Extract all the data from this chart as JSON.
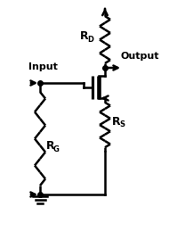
{
  "bg_color": "#ffffff",
  "line_color": "#000000",
  "text_color": "#000000",
  "figsize": [
    1.9,
    2.78
  ],
  "dpi": 100,
  "labels": {
    "RD": "R",
    "RD_sub": "D",
    "RS": "R",
    "RS_sub": "S",
    "RG": "R",
    "RG_sub": "G",
    "input": "Input",
    "output": "Output"
  }
}
